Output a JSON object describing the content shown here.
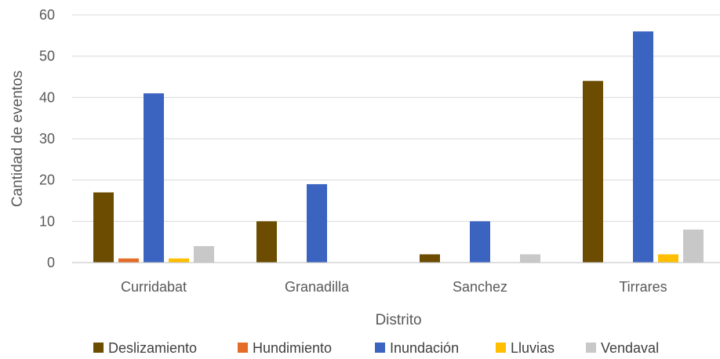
{
  "chart_data": {
    "type": "bar",
    "categories": [
      "Curridabat",
      "Granadilla",
      "Sanchez",
      "Tirrares"
    ],
    "series": [
      {
        "name": "Deslizamiento",
        "color": "#6b4c00",
        "values": [
          17,
          10,
          2,
          44
        ]
      },
      {
        "name": "Hundimiento",
        "color": "#e46c27",
        "values": [
          1,
          0,
          0,
          0
        ]
      },
      {
        "name": "Inundación",
        "color": "#3b64c0",
        "values": [
          41,
          19,
          10,
          56
        ]
      },
      {
        "name": "Lluvias",
        "color": "#ffbf00",
        "values": [
          1,
          0,
          0,
          2
        ]
      },
      {
        "name": "Vendaval",
        "color": "#c8c8c8",
        "values": [
          4,
          0,
          2,
          8
        ]
      }
    ],
    "xlabel": "Distrito",
    "ylabel": "Cantidad de eventos",
    "ylim": [
      0,
      60
    ],
    "yticks": [
      0,
      10,
      20,
      30,
      40,
      50,
      60
    ],
    "grid": true,
    "legend_position": "bottom"
  }
}
